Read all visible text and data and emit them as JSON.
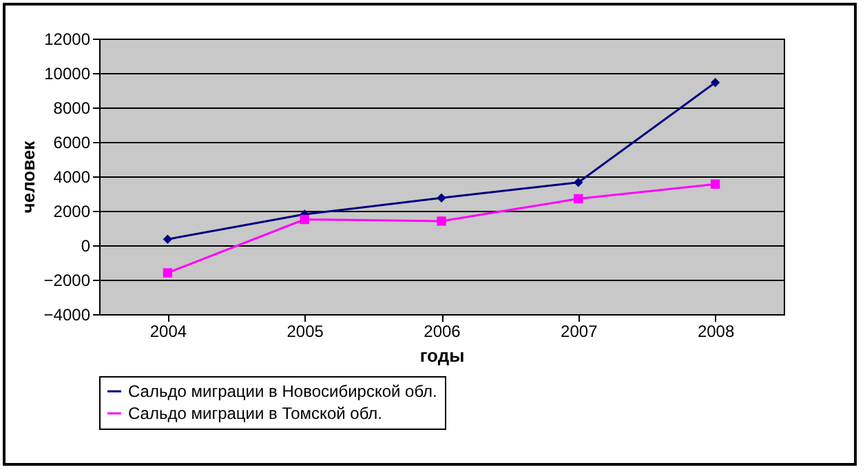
{
  "chart_data": {
    "type": "line",
    "xlabel": "годы",
    "ylabel": "человек",
    "categories": [
      "2004",
      "2005",
      "2006",
      "2007",
      "2008"
    ],
    "series": [
      {
        "name": "Сальдо миграции в Новосибирской обл.",
        "color": "#000080",
        "marker": "diamond",
        "values": [
          350,
          1800,
          2750,
          3650,
          9450
        ]
      },
      {
        "name": "Сальдо миграции в Томской обл.",
        "color": "#ff00ff",
        "marker": "square",
        "values": [
          -1600,
          1500,
          1400,
          2700,
          3550
        ]
      }
    ],
    "ylim": [
      -4000,
      12000
    ],
    "yticks": [
      -4000,
      -2000,
      0,
      2000,
      4000,
      6000,
      8000,
      10000,
      12000
    ],
    "grid": "y",
    "legend": "bottom"
  }
}
